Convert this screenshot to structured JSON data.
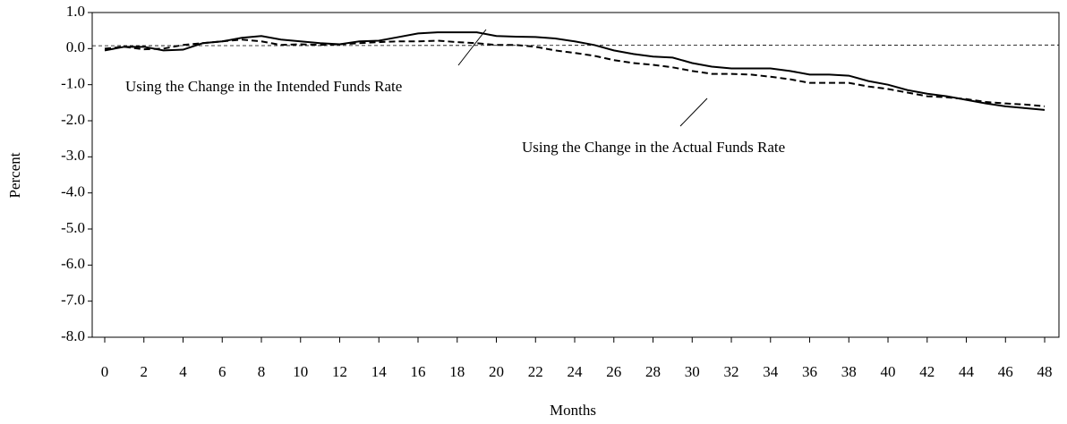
{
  "chart_data": {
    "type": "line",
    "x_label": "Months",
    "y_label": "Percent",
    "x": [
      0,
      1,
      2,
      3,
      4,
      5,
      6,
      7,
      8,
      9,
      10,
      11,
      12,
      13,
      14,
      15,
      16,
      17,
      18,
      19,
      20,
      21,
      22,
      23,
      24,
      25,
      26,
      27,
      28,
      29,
      30,
      31,
      32,
      33,
      34,
      35,
      36,
      37,
      38,
      39,
      40,
      41,
      42,
      43,
      44,
      45,
      46,
      47,
      48
    ],
    "series": [
      {
        "color": "#000000",
        "dash": "solid",
        "values": [
          -0.05,
          0.05,
          0.05,
          -0.05,
          -0.03,
          0.15,
          0.2,
          0.3,
          0.35,
          0.25,
          0.2,
          0.15,
          0.12,
          0.2,
          0.22,
          0.32,
          0.42,
          0.45,
          0.45,
          0.45,
          0.35,
          0.33,
          0.32,
          0.28,
          0.2,
          0.1,
          -0.05,
          -0.15,
          -0.22,
          -0.25,
          -0.4,
          -0.5,
          -0.55,
          -0.55,
          -0.55,
          -0.62,
          -0.72,
          -0.72,
          -0.75,
          -0.9,
          -1.0,
          -1.15,
          -1.25,
          -1.32,
          -1.42,
          -1.52,
          -1.6,
          -1.65,
          -1.7
        ]
      },
      {
        "color": "#000000",
        "dash": "dashed",
        "values": [
          0,
          0.05,
          -0.02,
          0,
          0.1,
          0.15,
          0.2,
          0.25,
          0.2,
          0.1,
          0.12,
          0.1,
          0.12,
          0.15,
          0.18,
          0.2,
          0.2,
          0.22,
          0.18,
          0.15,
          0.1,
          0.1,
          0.05,
          -0.05,
          -0.12,
          -0.2,
          -0.32,
          -0.4,
          -0.45,
          -0.52,
          -0.62,
          -0.7,
          -0.7,
          -0.72,
          -0.78,
          -0.85,
          -0.95,
          -0.95,
          -0.95,
          -1.05,
          -1.12,
          -1.22,
          -1.32,
          -1.35,
          -1.4,
          -1.48,
          -1.52,
          -1.55,
          -1.6
        ]
      }
    ],
    "reference_line": [
      0.08,
      0.1
    ],
    "annotations": [
      "Using the Change in the Intended Funds Rate",
      "Using the Change in the Actual Funds Rate"
    ],
    "xlim": [
      -0.64,
      48.73
    ],
    "xticks": [
      0,
      2,
      4,
      6,
      8,
      10,
      12,
      14,
      16,
      18,
      20,
      22,
      24,
      26,
      28,
      30,
      32,
      34,
      36,
      38,
      40,
      42,
      44,
      46,
      48
    ],
    "ylim": [
      -8,
      1
    ],
    "yticks": [
      {
        "value": 1,
        "label": "1.0"
      },
      {
        "value": 0,
        "label": "0.0"
      },
      {
        "value": -1,
        "label": "-1.0"
      },
      {
        "value": -2,
        "label": "-2.0"
      },
      {
        "value": -3,
        "label": "-3.0"
      },
      {
        "value": -4,
        "label": "-4.0"
      },
      {
        "value": -5,
        "label": "-5.0"
      },
      {
        "value": -6,
        "label": "-6.0"
      },
      {
        "value": -7,
        "label": "-7.0"
      },
      {
        "value": -8,
        "label": "-8.0"
      }
    ],
    "grid": false
  }
}
